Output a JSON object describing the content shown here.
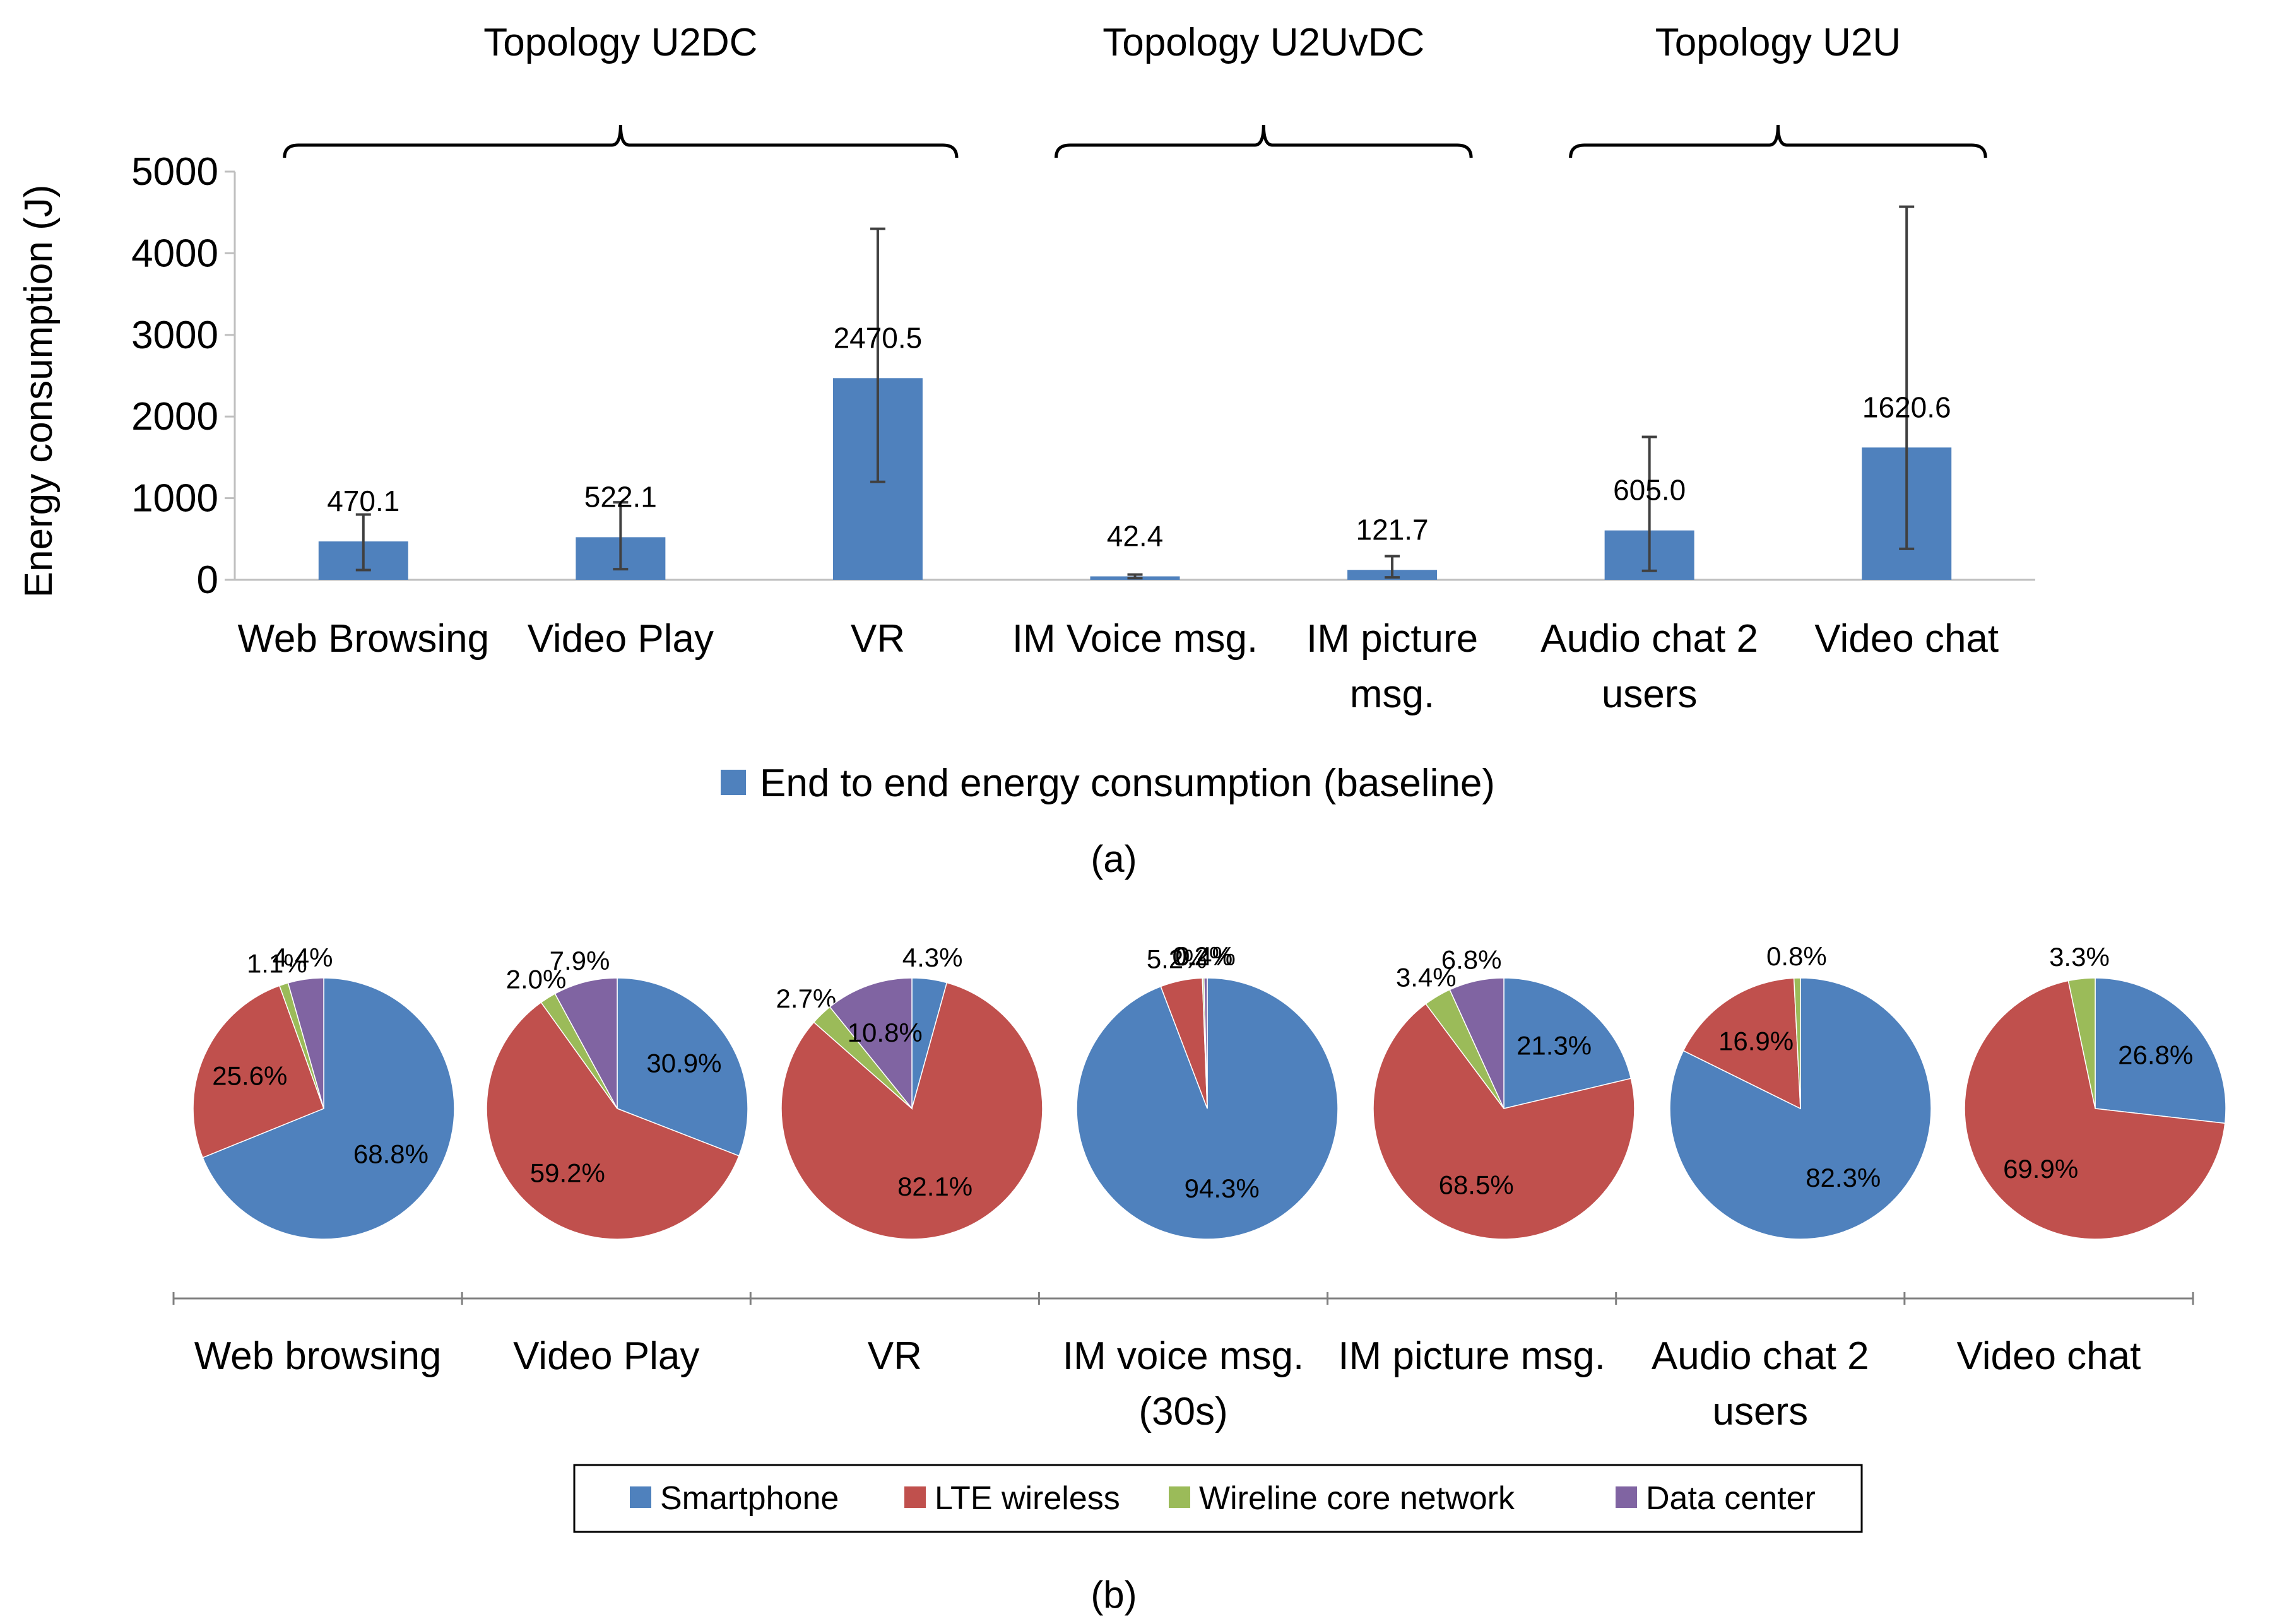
{
  "colors": {
    "bar": "#4F81BD",
    "smartphone": "#4F81BD",
    "lte": "#C0504D",
    "wireline": "#9BBB59",
    "datacenter": "#8064A2",
    "axis": "#BFBFBF",
    "errorbar": "#404040"
  },
  "chart_data": [
    {
      "type": "bar",
      "panel": "(a)",
      "ylabel": "Energy consumption (J)",
      "ylim": [
        0,
        5000
      ],
      "yticks": [
        "0",
        "1000",
        "2000",
        "3000",
        "4000",
        "5000"
      ],
      "categories": [
        [
          "Web Browsing"
        ],
        [
          "Video Play"
        ],
        [
          "VR"
        ],
        [
          "IM Voice msg."
        ],
        [
          "IM picture",
          "msg."
        ],
        [
          "Audio chat 2",
          "users"
        ],
        [
          "Video chat"
        ]
      ],
      "series": [
        {
          "name": "End to end energy consumption (baseline)",
          "values": [
            470.1,
            522.1,
            2470.5,
            42.4,
            121.7,
            605.0,
            1620.6
          ],
          "labels": [
            "470.1",
            "522.1",
            "2470.5",
            "42.4",
            "121.7",
            "605.0",
            "1620.6"
          ],
          "error_low": [
            120,
            130,
            1200,
            20,
            30,
            110,
            380
          ],
          "error_high": [
            800,
            950,
            4300,
            65,
            290,
            1750,
            4570
          ]
        }
      ],
      "groups": [
        {
          "label": "Topology U2DC",
          "from": 0,
          "to": 2
        },
        {
          "label": "Topology U2UvDC",
          "from": 3,
          "to": 4
        },
        {
          "label": "Topology U2U",
          "from": 5,
          "to": 6
        }
      ],
      "legend": "bottom"
    },
    {
      "type": "pie",
      "panel": "(b)",
      "legend_entries": [
        "Smartphone",
        "LTE wireless",
        "Wireline core network",
        "Data center"
      ],
      "legend": "bottom",
      "pies": [
        {
          "category": [
            "Web browsing"
          ],
          "slices": [
            {
              "name": "Smartphone",
              "value": 68.8,
              "label": "68.8%"
            },
            {
              "name": "LTE wireless",
              "value": 25.6,
              "label": "25.6%"
            },
            {
              "name": "Wireline core network",
              "value": 1.1,
              "label": "1.1%"
            },
            {
              "name": "Data center",
              "value": 4.4,
              "label": "4.4%"
            }
          ]
        },
        {
          "category": [
            "Video Play"
          ],
          "slices": [
            {
              "name": "Smartphone",
              "value": 30.9,
              "label": "30.9%"
            },
            {
              "name": "LTE wireless",
              "value": 59.2,
              "label": "59.2%"
            },
            {
              "name": "Wireline core network",
              "value": 2.0,
              "label": "2.0%"
            },
            {
              "name": "Data center",
              "value": 7.9,
              "label": "7.9%"
            }
          ]
        },
        {
          "category": [
            "VR"
          ],
          "slices": [
            {
              "name": "Smartphone",
              "value": 4.3,
              "label": "4.3%"
            },
            {
              "name": "LTE wireless",
              "value": 82.1,
              "label": "82.1%"
            },
            {
              "name": "Wireline core network",
              "value": 2.7,
              "label": "2.7%"
            },
            {
              "name": "Data center",
              "value": 10.8,
              "label": "10.8%"
            }
          ]
        },
        {
          "category": [
            "IM voice msg.",
            "(30s)"
          ],
          "slices": [
            {
              "name": "Smartphone",
              "value": 94.3,
              "label": "94.3%"
            },
            {
              "name": "LTE wireless",
              "value": 5.2,
              "label": "5.2%"
            },
            {
              "name": "Wireline core network",
              "value": 0.2,
              "label": "0.2%"
            },
            {
              "name": "Data center",
              "value": 0.4,
              "label": "0.4%"
            }
          ]
        },
        {
          "category": [
            "IM picture msg."
          ],
          "slices": [
            {
              "name": "Smartphone",
              "value": 21.3,
              "label": "21.3%"
            },
            {
              "name": "LTE wireless",
              "value": 68.5,
              "label": "68.5%"
            },
            {
              "name": "Wireline core network",
              "value": 3.4,
              "label": "3.4%"
            },
            {
              "name": "Data center",
              "value": 6.8,
              "label": "6.8%"
            }
          ]
        },
        {
          "category": [
            "Audio chat 2",
            "users"
          ],
          "slices": [
            {
              "name": "Smartphone",
              "value": 82.3,
              "label": "82.3%"
            },
            {
              "name": "LTE wireless",
              "value": 16.9,
              "label": "16.9%"
            },
            {
              "name": "Wireline core network",
              "value": 0.8,
              "label": "0.8%"
            }
          ]
        },
        {
          "category": [
            "Video chat"
          ],
          "slices": [
            {
              "name": "Smartphone",
              "value": 26.8,
              "label": "26.8%"
            },
            {
              "name": "LTE wireless",
              "value": 69.9,
              "label": "69.9%"
            },
            {
              "name": "Wireline core network",
              "value": 3.3,
              "label": "3.3%"
            }
          ]
        }
      ]
    }
  ],
  "captions": {
    "a": "(a)",
    "b": "(b)"
  }
}
